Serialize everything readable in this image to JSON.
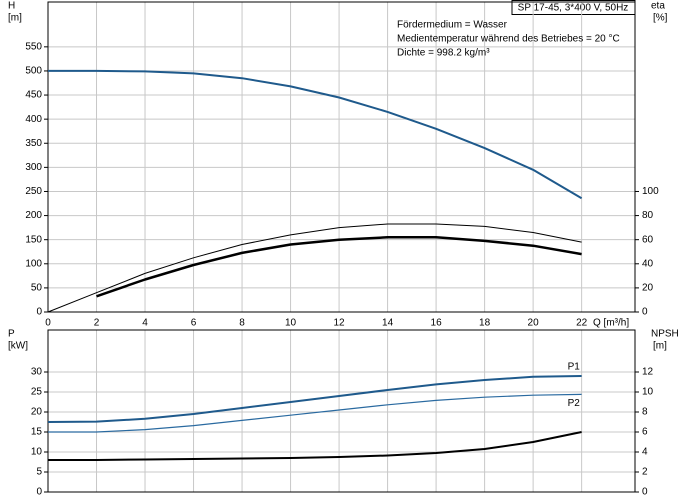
{
  "chart_data": [
    {
      "type": "line",
      "title": "SP 17-45, 3*400 V, 50Hz",
      "annotations": [
        "Fördermedium = Wasser",
        "Medientemperatur während des Betriebes = 20 °C",
        "Dichte = 998.2 kg/m³"
      ],
      "ylabel": "H",
      "yunit": "[m]",
      "y2label": "eta",
      "y2unit": "[%]",
      "xlabel": "Q [m³/h]",
      "x": [
        0,
        2,
        4,
        6,
        8,
        10,
        12,
        14,
        16,
        18,
        20,
        22
      ],
      "xlim": [
        0,
        24.2
      ],
      "xticks": [
        0,
        2,
        4,
        6,
        8,
        10,
        12,
        14,
        16,
        18,
        20,
        22
      ],
      "ylim": [
        0,
        643
      ],
      "yticks": [
        0,
        50,
        100,
        150,
        200,
        250,
        300,
        350,
        400,
        450,
        500,
        550
      ],
      "y2lim": [
        0,
        257.2
      ],
      "y2ticks": [
        0,
        20,
        40,
        60,
        80,
        100
      ],
      "grid": true,
      "series": [
        {
          "color": "#1f5a8c",
          "width": 2,
          "values": [
            500,
            500,
            499,
            495,
            485,
            468,
            445,
            415,
            380,
            340,
            295,
            236
          ]
        },
        {
          "color": "#000000",
          "width": 1,
          "axis": "y2",
          "values": [
            0,
            16,
            32,
            45,
            56,
            64,
            70,
            73,
            73,
            71,
            66,
            58
          ]
        },
        {
          "color": "#000000",
          "width": 2.5,
          "axis": "y2",
          "values": [
            null,
            13,
            27,
            39,
            49,
            56,
            60,
            62,
            62,
            59,
            55,
            48
          ]
        }
      ]
    },
    {
      "type": "line",
      "ylabel": "P",
      "yunit": "[kW]",
      "y2label": "NPSH",
      "y2unit": "[m]",
      "x": [
        0,
        2,
        4,
        6,
        8,
        10,
        12,
        14,
        16,
        18,
        20,
        22
      ],
      "xlim": [
        0,
        24.2
      ],
      "xticks": [
        0,
        2,
        4,
        6,
        8,
        10,
        12,
        14,
        16,
        18,
        20,
        22
      ],
      "ylim": [
        0,
        40.5
      ],
      "yticks": [
        0,
        5,
        10,
        15,
        20,
        25,
        30
      ],
      "y2lim": [
        0,
        16.2
      ],
      "y2ticks": [
        0,
        2,
        4,
        6,
        8,
        10,
        12
      ],
      "grid": true,
      "series": [
        {
          "name": "P1",
          "color": "#1f5a8c",
          "width": 2,
          "values": [
            17.5,
            17.6,
            18.3,
            19.5,
            21,
            22.5,
            24,
            25.5,
            26.9,
            28,
            28.8,
            29
          ]
        },
        {
          "name": "P2",
          "color": "#2a6aa0",
          "width": 1.2,
          "values": [
            15,
            15,
            15.6,
            16.6,
            17.9,
            19.2,
            20.5,
            21.8,
            22.9,
            23.7,
            24.2,
            24.4
          ]
        },
        {
          "color": "#000000",
          "width": 2,
          "axis": "y2",
          "values": [
            3.2,
            3.2,
            3.25,
            3.3,
            3.35,
            3.4,
            3.5,
            3.65,
            3.9,
            4.3,
            5.0,
            6.0
          ]
        }
      ]
    }
  ]
}
